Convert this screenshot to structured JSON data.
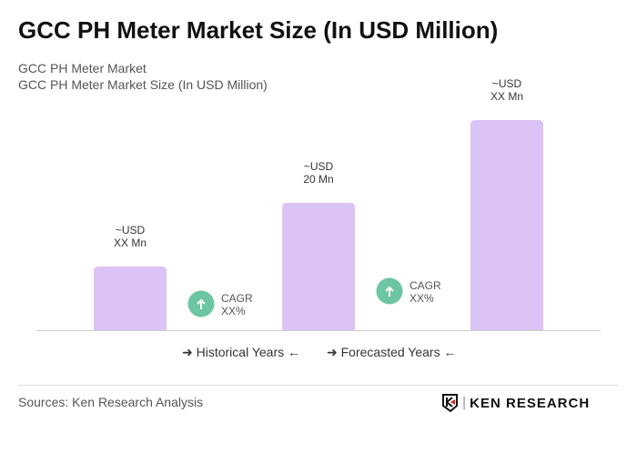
{
  "title": "GCC PH Meter Market Size (In USD Million)",
  "subtitle1": "GCC PH Meter Market",
  "subtitle2": "GCC PH Meter Market Size (In USD Million)",
  "chart_data": {
    "type": "bar",
    "categories": [
      "",
      "",
      ""
    ],
    "values": [
      10,
      20,
      33
    ],
    "data_labels": [
      [
        "~USD",
        "XX Mn"
      ],
      [
        "~USD",
        "20 Mn"
      ],
      [
        "~USD",
        "XX Mn"
      ]
    ],
    "bar_color": "#dcc3f6",
    "cagr": [
      {
        "label": "CAGR",
        "value": "XX%"
      },
      {
        "label": "CAGR",
        "value": "XX%"
      }
    ],
    "cagr_color": "#6cc6a1",
    "grid": false
  },
  "legend": {
    "historical": "Historical Years",
    "forecasted": "Forecasted Years"
  },
  "source": "Sources: Ken Research Analysis",
  "logo": "KEN RESEARCH"
}
